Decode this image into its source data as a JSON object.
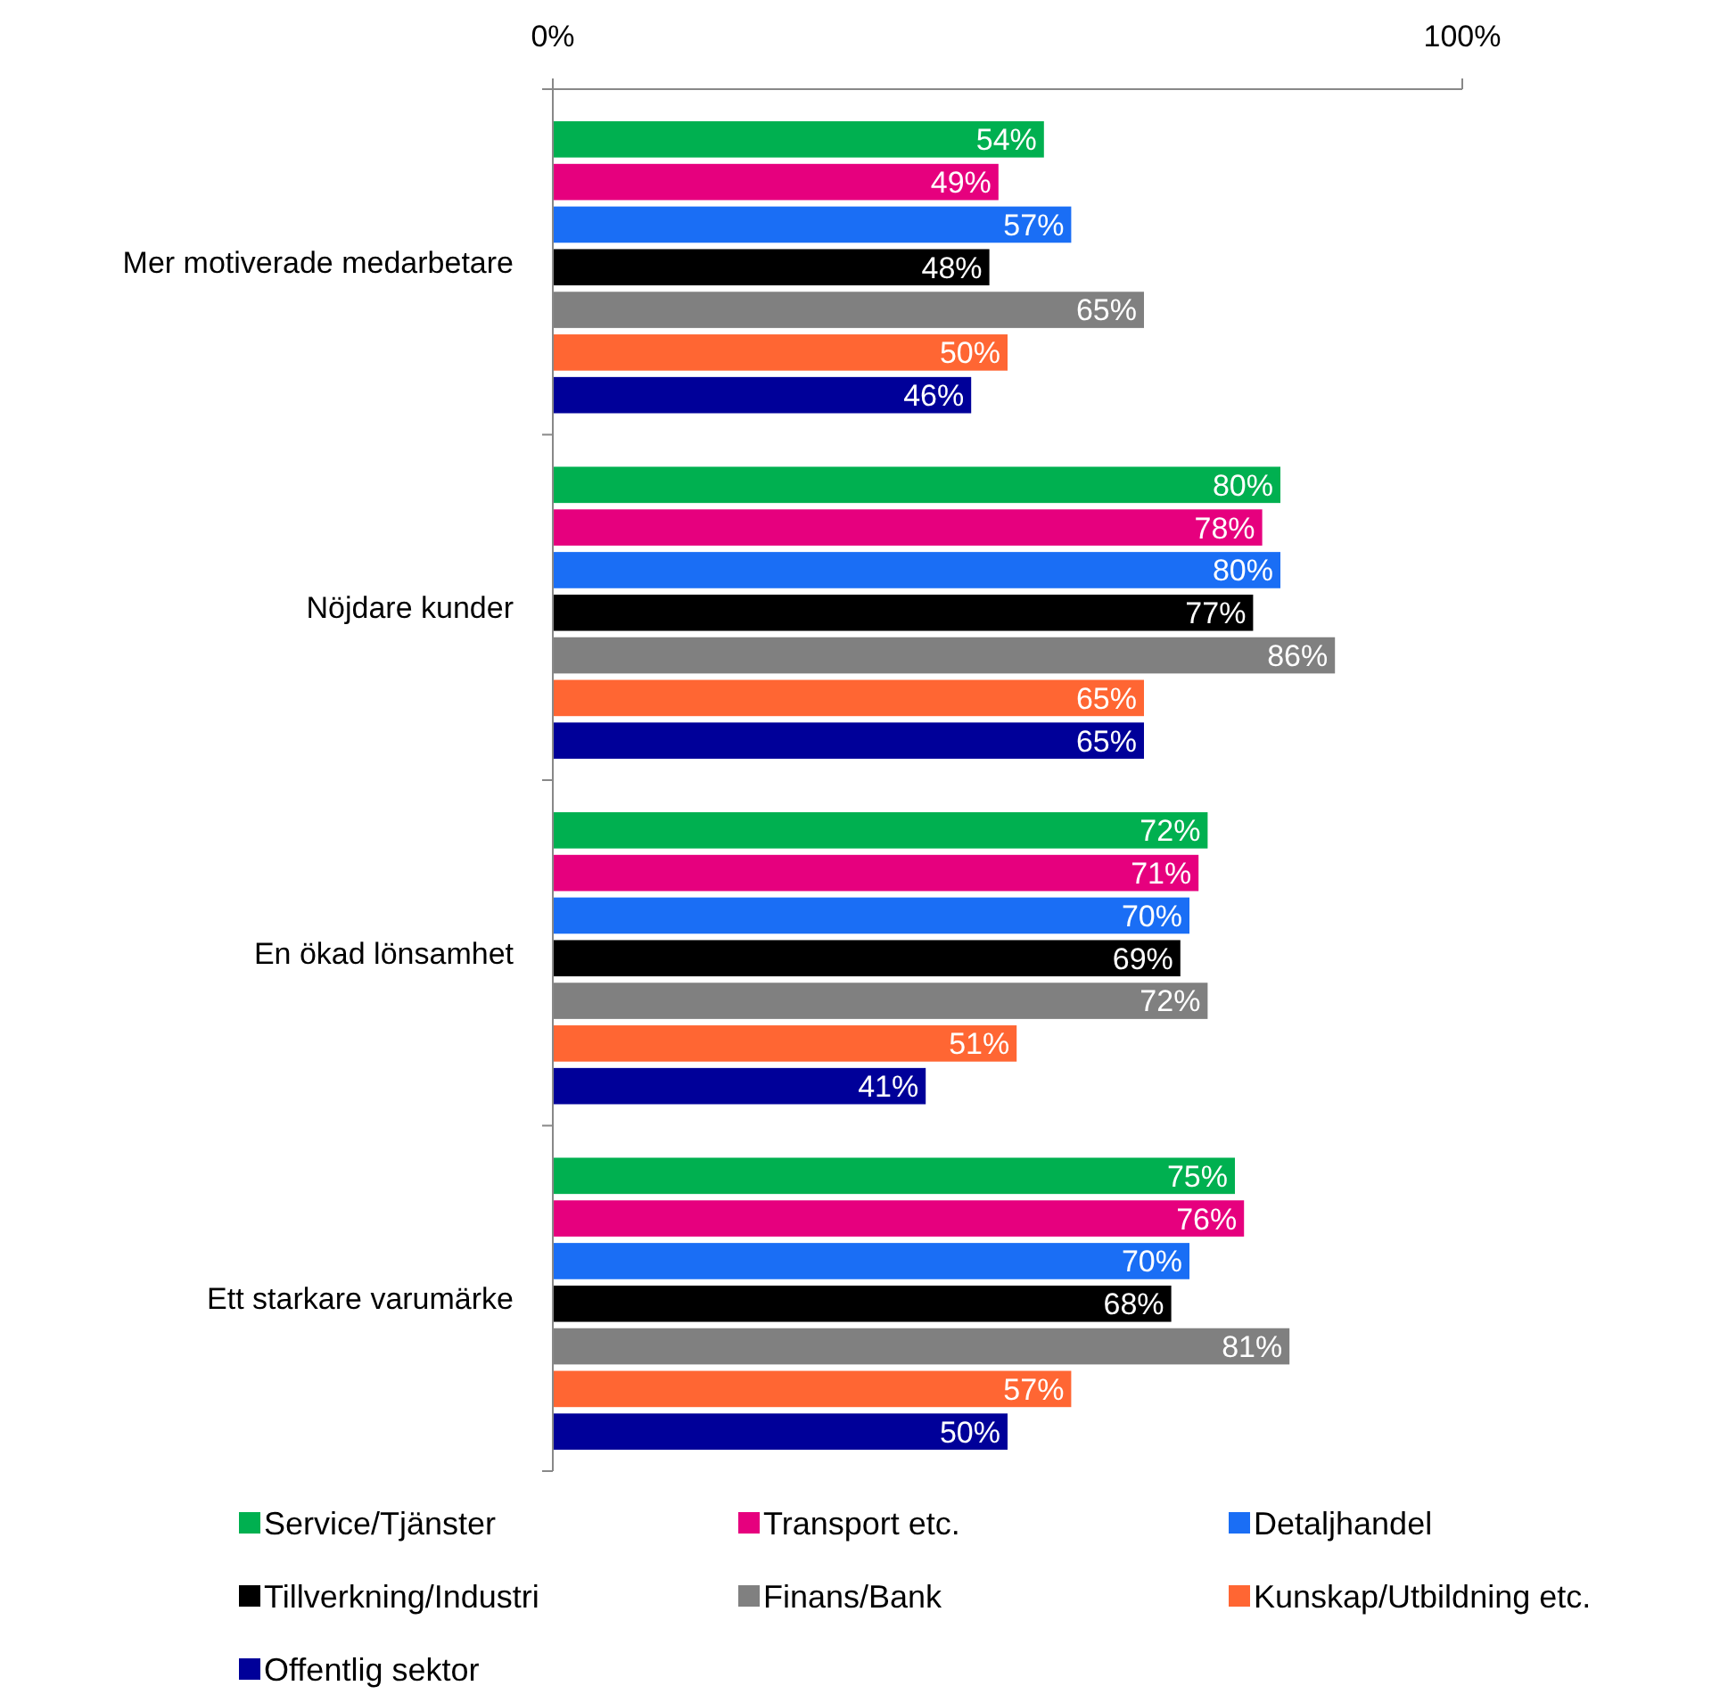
{
  "chart_data": {
    "type": "bar",
    "orientation": "horizontal",
    "categories": [
      "Mer motiverade medarbetare",
      "Nöjdare kunder",
      "En ökad lönsamhet",
      "Ett starkare varumärke"
    ],
    "xlim": [
      0,
      100
    ],
    "xticks": [
      {
        "value": 0,
        "label": "0%"
      },
      {
        "value": 100,
        "label": "100%"
      }
    ],
    "legend": "bottom",
    "grid": false,
    "series": [
      {
        "name": "Service/Tjänster",
        "color": "#00b050",
        "values": [
          54,
          80,
          72,
          75
        ],
        "value_labels": [
          "54%",
          "80%",
          "72%",
          "75%"
        ]
      },
      {
        "name": "Transport etc.",
        "color": "#e6007e",
        "values": [
          49,
          78,
          71,
          76
        ],
        "value_labels": [
          "49%",
          "78%",
          "71%",
          "76%"
        ]
      },
      {
        "name": "Detaljhandel",
        "color": "#1a6ef5",
        "values": [
          57,
          80,
          70,
          70
        ],
        "value_labels": [
          "57%",
          "80%",
          "70%",
          "70%"
        ]
      },
      {
        "name": "Tillverkning/Industri",
        "color": "#000000",
        "values": [
          48,
          77,
          69,
          68
        ],
        "value_labels": [
          "48%",
          "77%",
          "69%",
          "68%"
        ]
      },
      {
        "name": "Finans/Bank",
        "color": "#808080",
        "values": [
          65,
          86,
          72,
          81
        ],
        "value_labels": [
          "65%",
          "86%",
          "72%",
          "81%"
        ]
      },
      {
        "name": "Kunskap/Utbildning etc.",
        "color": "#ff6633",
        "values": [
          50,
          65,
          51,
          57
        ],
        "value_labels": [
          "50%",
          "65%",
          "51%",
          "57%"
        ]
      },
      {
        "name": "Offentlig sektor",
        "color": "#000099",
        "values": [
          46,
          65,
          41,
          50
        ],
        "value_labels": [
          "46%",
          "65%",
          "41%",
          "50%"
        ]
      }
    ]
  }
}
